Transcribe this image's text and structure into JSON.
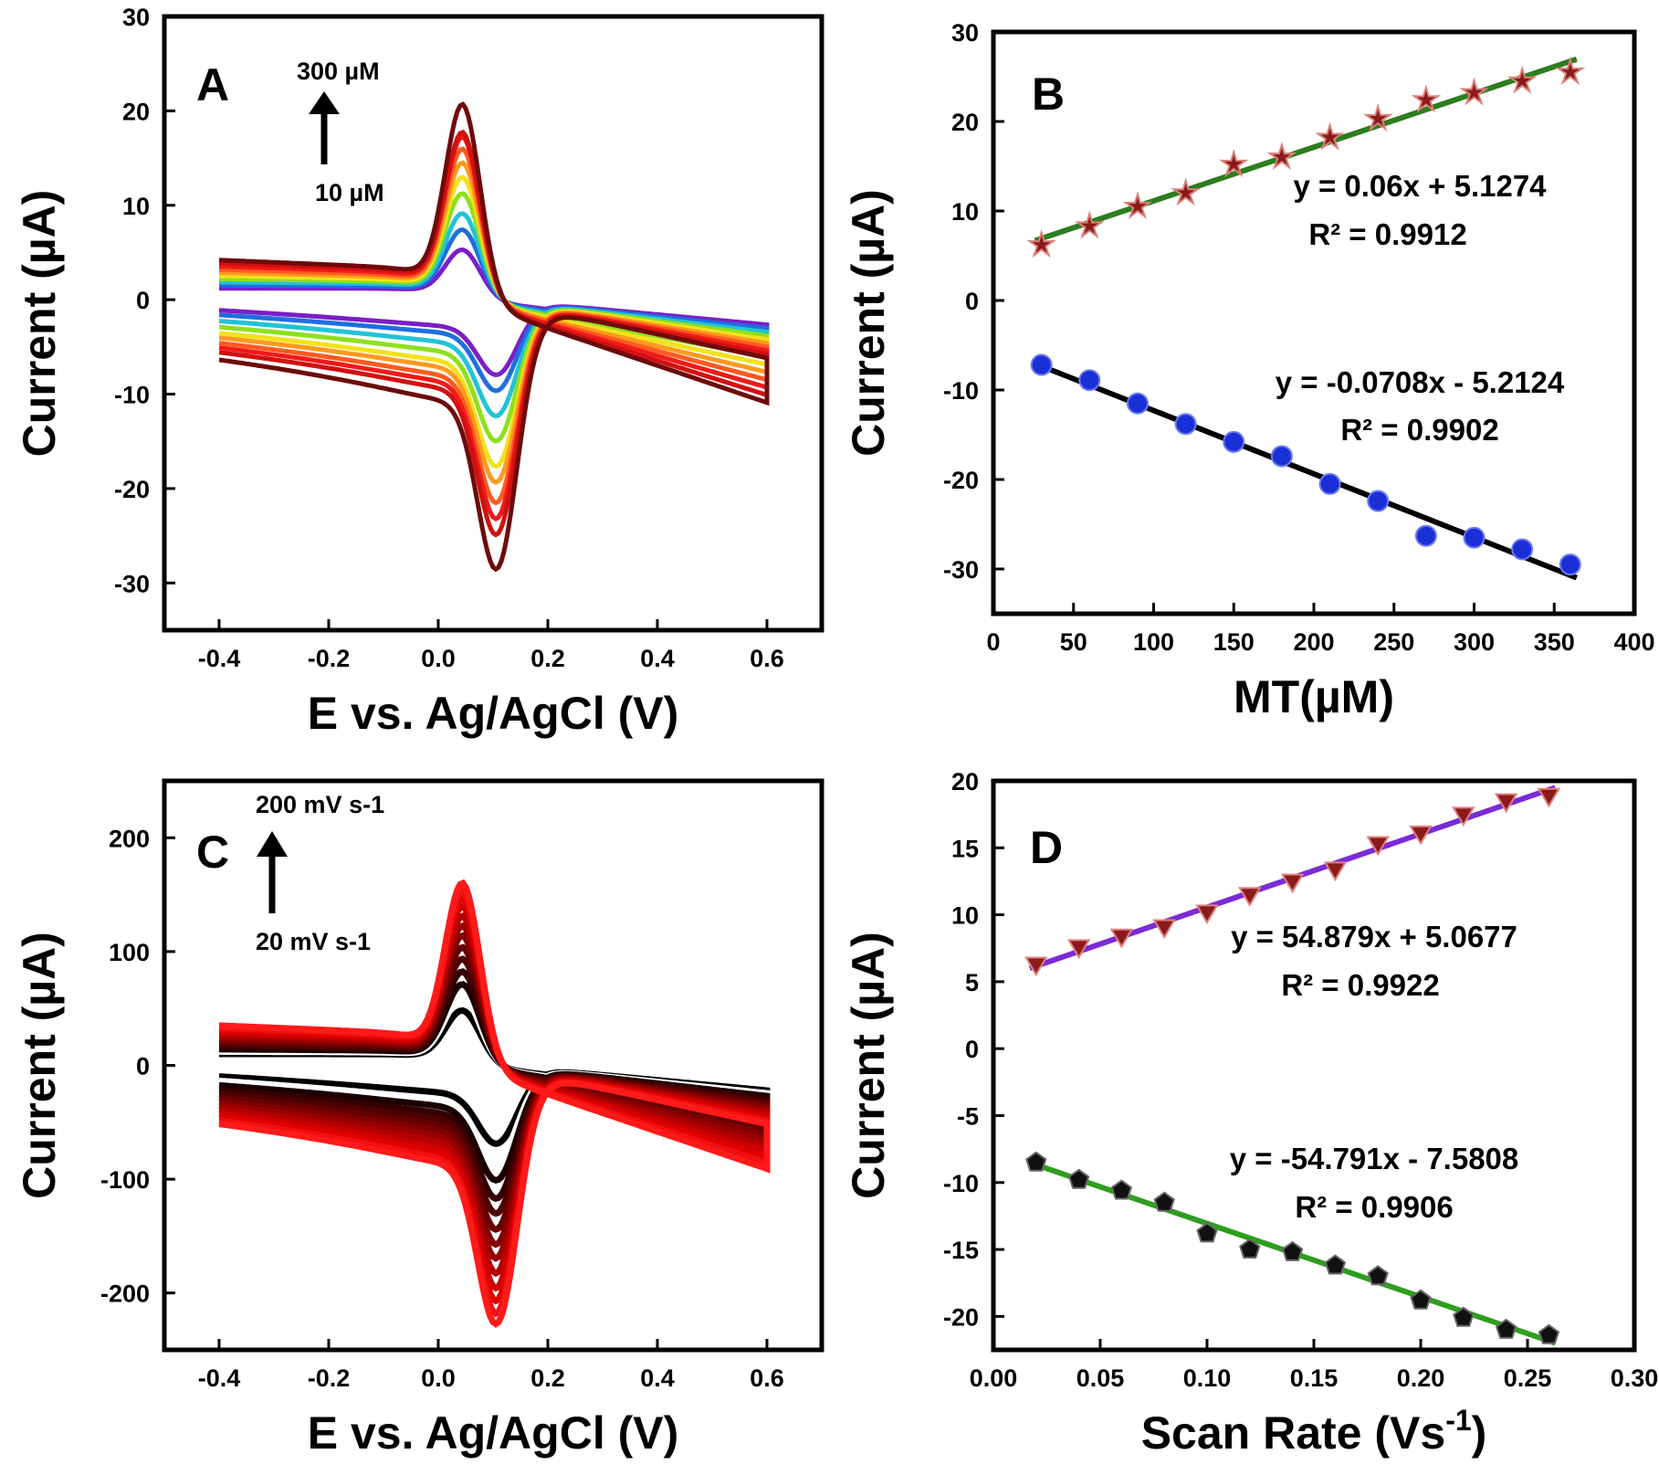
{
  "chart_data": [
    {
      "panel": "A",
      "type": "line",
      "xlabel": "E vs. Ag/AgCl (V)",
      "ylabel": "Current (µA)",
      "xlim": [
        -0.5,
        0.7
      ],
      "ylim": [
        -35,
        30
      ],
      "xticks": [
        -0.4,
        -0.2,
        0.0,
        0.2,
        0.4,
        0.6
      ],
      "xtick_labels": [
        "-0.4",
        "-0.2",
        "0.0",
        "0.2",
        "0.4",
        "0.6"
      ],
      "yticks": [
        -30,
        -20,
        -10,
        0,
        10,
        20,
        30
      ],
      "ytick_labels": [
        "-30",
        "-20",
        "-10",
        "0",
        "10",
        "20",
        "30"
      ],
      "annotation_top": "300 µM",
      "annotation_bottom": "10 µM",
      "curves": {
        "anodic_peak_potential": 0.045,
        "cathodic_peak_potential": 0.11,
        "colors": [
          "#7a1fc7",
          "#1e6fe0",
          "#22c3d6",
          "#8ee01e",
          "#f2e21b",
          "#ff9a1f",
          "#ff5a1f",
          "#f01a1a",
          "#d11010",
          "#6e0a0a"
        ],
        "anodic_peak_current": [
          6,
          8.5,
          10.5,
          13,
          15,
          16.8,
          18.5,
          20,
          20.5,
          24
        ],
        "cathodic_peak_current": [
          -7.5,
          -9,
          -11.5,
          -14,
          -16.5,
          -18,
          -20,
          -21.5,
          -23,
          -26.5
        ]
      }
    },
    {
      "panel": "B",
      "type": "scatter",
      "xlabel": "MT(µM)",
      "ylabel": "Current (µA)",
      "xlim": [
        0,
        400
      ],
      "ylim": [
        -35,
        30
      ],
      "xticks": [
        0,
        50,
        100,
        150,
        200,
        250,
        300,
        350,
        400
      ],
      "xtick_labels": [
        "0",
        "50",
        "100",
        "150",
        "200",
        "250",
        "300",
        "350",
        "400"
      ],
      "yticks": [
        -30,
        -20,
        -10,
        0,
        10,
        20,
        30
      ],
      "ytick_labels": [
        "-30",
        "-20",
        "-10",
        "0",
        "10",
        "20",
        "30"
      ],
      "series": [
        {
          "marker": "star",
          "color": "#8b1a1a",
          "x": [
            30,
            60,
            90,
            120,
            150,
            180,
            210,
            240,
            270,
            300,
            330,
            360
          ],
          "y": [
            6.2,
            8.3,
            10.5,
            12,
            15.2,
            16,
            18.2,
            20.3,
            22.4,
            23.2,
            24.5,
            25.5
          ],
          "fit": {
            "slope": 0.06,
            "intercept": 5.1274,
            "equation": "y = 0.06x + 5.1274",
            "r2": "R² = 0.9912",
            "color": "#2e7d1e"
          }
        },
        {
          "marker": "circle",
          "color": "#1a2fd6",
          "x": [
            30,
            60,
            90,
            120,
            150,
            180,
            210,
            240,
            270,
            300,
            330,
            360
          ],
          "y": [
            -7.2,
            -8.9,
            -11.5,
            -13.8,
            -15.8,
            -17.4,
            -20.5,
            -22.4,
            -26.3,
            -26.5,
            -27.8,
            -29.5
          ],
          "fit": {
            "slope": -0.0708,
            "intercept": -5.2124,
            "equation": "y = -0.0708x - 5.2124",
            "r2": "R² = 0.9902",
            "color": "#000000"
          }
        }
      ]
    },
    {
      "panel": "C",
      "type": "line",
      "xlabel": "E vs. Ag/AgCl (V)",
      "ylabel": "Current (µA)",
      "xlim": [
        -0.5,
        0.7
      ],
      "ylim": [
        -250,
        250
      ],
      "xticks": [
        -0.4,
        -0.2,
        0.0,
        0.2,
        0.4,
        0.6
      ],
      "xtick_labels": [
        "-0.4",
        "-0.2",
        "0.0",
        "0.2",
        "0.4",
        "0.6"
      ],
      "yticks": [
        -200,
        -100,
        0,
        100,
        200
      ],
      "ytick_labels": [
        "-200",
        "-100",
        "0",
        "100",
        "200"
      ],
      "annotation_top": "200 mV s-1",
      "annotation_bottom": "20 mV s-1",
      "curves": {
        "anodic_peak_potential": 0.045,
        "cathodic_peak_potential": 0.11,
        "colors": [
          "#000000",
          "#ffffff",
          "#1a0000",
          "#330000",
          "#4d0000",
          "#660000",
          "#800000",
          "#990000",
          "#b30000",
          "#cc0000",
          "#e00000",
          "#f01010",
          "#ff1a1a"
        ],
        "anodic_peak_current": [
          55,
          70,
          82,
          95,
          108,
          120,
          132,
          142,
          152,
          162,
          170,
          178,
          185
        ],
        "cathodic_peak_current": [
          -65,
          -80,
          -95,
          -110,
          -122,
          -135,
          -147,
          -158,
          -170,
          -182,
          -192,
          -202,
          -210
        ]
      }
    },
    {
      "panel": "D",
      "type": "scatter",
      "xlabel": "Scan Rate (Vs",
      "xlabel_sup": "-1",
      "xlabel_end": ")",
      "ylabel": "Current (µA)",
      "xlim": [
        0,
        0.3
      ],
      "ylim": [
        -22.5,
        20
      ],
      "xticks": [
        0.0,
        0.05,
        0.1,
        0.15,
        0.2,
        0.25,
        0.3
      ],
      "xtick_labels": [
        "0.00",
        "0.05",
        "0.10",
        "0.15",
        "0.20",
        "0.25",
        "0.30"
      ],
      "yticks": [
        -20,
        -15,
        -10,
        -5,
        0,
        5,
        10,
        15,
        20
      ],
      "ytick_labels": [
        "-20",
        "-15",
        "-10",
        "-5",
        "0",
        "5",
        "10",
        "15",
        "20"
      ],
      "series": [
        {
          "marker": "triangle-down",
          "color": "#8b1a1a",
          "x": [
            0.02,
            0.04,
            0.06,
            0.08,
            0.1,
            0.12,
            0.14,
            0.16,
            0.18,
            0.2,
            0.22,
            0.24,
            0.26
          ],
          "y": [
            6.2,
            7.5,
            8.3,
            9.0,
            10.1,
            11.4,
            12.4,
            13.3,
            15.2,
            16.0,
            17.4,
            18.4,
            18.8
          ],
          "fit": {
            "slope": 54.879,
            "intercept": 5.0677,
            "equation": "y = 54.879x + 5.0677",
            "r2": "R² = 0.9922",
            "color": "#7b2ad6"
          }
        },
        {
          "marker": "pentagon",
          "color": "#111111",
          "x": [
            0.02,
            0.04,
            0.06,
            0.08,
            0.1,
            0.12,
            0.14,
            0.16,
            0.18,
            0.2,
            0.22,
            0.24,
            0.26
          ],
          "y": [
            -8.5,
            -9.8,
            -10.6,
            -11.5,
            -13.8,
            -15.0,
            -15.2,
            -16.2,
            -17.0,
            -18.8,
            -20.1,
            -21.0,
            -21.4
          ],
          "fit": {
            "slope": -54.791,
            "intercept": -7.5808,
            "equation": "y = -54.791x - 7.5808",
            "r2": "R² = 0.9906",
            "color": "#2e9e1e"
          }
        }
      ]
    }
  ]
}
